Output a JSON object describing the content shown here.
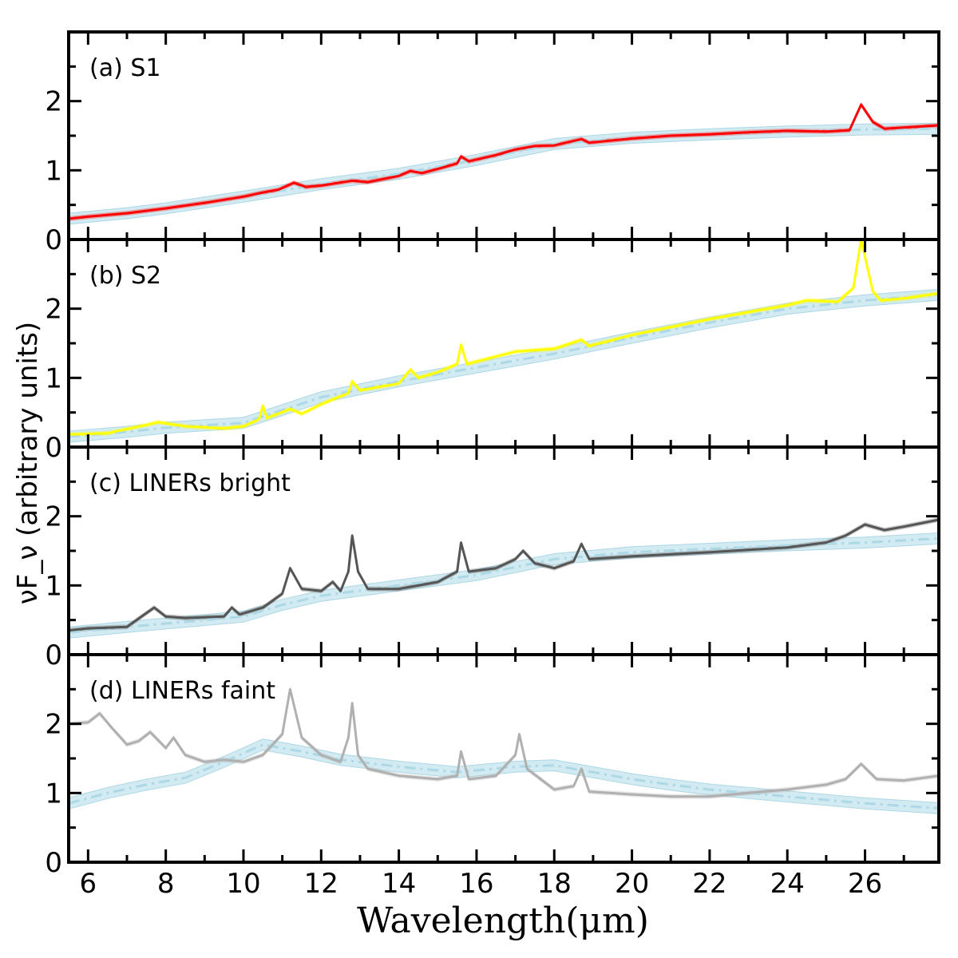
{
  "chart_data": {
    "type": "line",
    "xlabel": "Wavelength(μm)",
    "ylabel": "νF_ν (arbitrary units)",
    "xlim": [
      5.5,
      27.9
    ],
    "ylim": [
      0,
      3.0
    ],
    "x_ticks": [
      6,
      8,
      10,
      12,
      14,
      16,
      18,
      20,
      22,
      24,
      26
    ],
    "x_tick_labels": [
      "6",
      "8",
      "10",
      "12",
      "14",
      "16",
      "18",
      "20",
      "22",
      "24",
      "26"
    ],
    "y_ticks": [
      0,
      1,
      2
    ],
    "y_tick_labels": [
      "0",
      "1",
      "2"
    ],
    "band_halfwidth": 0.08,
    "band_color": "#add8e6",
    "panels": [
      {
        "label": "(a) S1",
        "color": "#ff0000",
        "spectrum": [
          [
            5.5,
            0.3
          ],
          [
            6,
            0.33
          ],
          [
            7,
            0.38
          ],
          [
            8,
            0.45
          ],
          [
            9,
            0.53
          ],
          [
            10,
            0.62
          ],
          [
            10.5,
            0.68
          ],
          [
            10.9,
            0.72
          ],
          [
            11.3,
            0.82
          ],
          [
            11.6,
            0.76
          ],
          [
            12,
            0.78
          ],
          [
            12.8,
            0.85
          ],
          [
            13.2,
            0.83
          ],
          [
            14,
            0.92
          ],
          [
            14.3,
            0.99
          ],
          [
            14.6,
            0.96
          ],
          [
            15,
            1.02
          ],
          [
            15.5,
            1.1
          ],
          [
            15.6,
            1.2
          ],
          [
            15.8,
            1.13
          ],
          [
            16.5,
            1.22
          ],
          [
            17.0,
            1.3
          ],
          [
            17.5,
            1.35
          ],
          [
            18.0,
            1.36
          ],
          [
            18.7,
            1.45
          ],
          [
            18.9,
            1.4
          ],
          [
            20,
            1.46
          ],
          [
            21,
            1.5
          ],
          [
            22,
            1.52
          ],
          [
            23,
            1.55
          ],
          [
            24,
            1.57
          ],
          [
            25,
            1.56
          ],
          [
            25.6,
            1.58
          ],
          [
            25.9,
            1.95
          ],
          [
            26.2,
            1.7
          ],
          [
            26.5,
            1.6
          ],
          [
            27.9,
            1.65
          ]
        ],
        "model": [
          [
            5.5,
            0.3
          ],
          [
            7,
            0.38
          ],
          [
            8,
            0.45
          ],
          [
            10,
            0.62
          ],
          [
            12,
            0.8
          ],
          [
            14,
            0.95
          ],
          [
            16,
            1.15
          ],
          [
            18,
            1.38
          ],
          [
            20,
            1.47
          ],
          [
            22,
            1.52
          ],
          [
            24,
            1.56
          ],
          [
            26,
            1.59
          ],
          [
            27.9,
            1.6
          ]
        ]
      },
      {
        "label": "(b) S2",
        "color": "#ffff00",
        "spectrum": [
          [
            5.5,
            0.18
          ],
          [
            6.5,
            0.2
          ],
          [
            7.5,
            0.32
          ],
          [
            7.8,
            0.36
          ],
          [
            8.5,
            0.3
          ],
          [
            9.5,
            0.27
          ],
          [
            10.0,
            0.3
          ],
          [
            10.4,
            0.4
          ],
          [
            10.5,
            0.6
          ],
          [
            10.6,
            0.42
          ],
          [
            11.2,
            0.55
          ],
          [
            11.5,
            0.48
          ],
          [
            12,
            0.62
          ],
          [
            12.7,
            0.78
          ],
          [
            12.8,
            0.95
          ],
          [
            13.0,
            0.82
          ],
          [
            14,
            0.92
          ],
          [
            14.3,
            1.12
          ],
          [
            14.5,
            1.0
          ],
          [
            15,
            1.08
          ],
          [
            15.5,
            1.2
          ],
          [
            15.6,
            1.48
          ],
          [
            15.75,
            1.2
          ],
          [
            17,
            1.38
          ],
          [
            18,
            1.42
          ],
          [
            18.7,
            1.55
          ],
          [
            18.9,
            1.46
          ],
          [
            20,
            1.62
          ],
          [
            22,
            1.85
          ],
          [
            24,
            2.05
          ],
          [
            24.5,
            2.12
          ],
          [
            25.3,
            2.1
          ],
          [
            25.7,
            2.3
          ],
          [
            25.9,
            3.0
          ],
          [
            26.2,
            2.25
          ],
          [
            26.4,
            2.12
          ],
          [
            27,
            2.15
          ],
          [
            27.9,
            2.22
          ]
        ],
        "model": [
          [
            5.5,
            0.15
          ],
          [
            7,
            0.22
          ],
          [
            8,
            0.28
          ],
          [
            10,
            0.35
          ],
          [
            12,
            0.72
          ],
          [
            14,
            0.95
          ],
          [
            16,
            1.15
          ],
          [
            18,
            1.35
          ],
          [
            20,
            1.58
          ],
          [
            22,
            1.8
          ],
          [
            24,
            2.0
          ],
          [
            26,
            2.12
          ],
          [
            27.9,
            2.2
          ]
        ]
      },
      {
        "label": "(c) LINERs bright",
        "color": "#555555",
        "spectrum": [
          [
            5.5,
            0.35
          ],
          [
            6,
            0.38
          ],
          [
            7,
            0.4
          ],
          [
            7.3,
            0.52
          ],
          [
            7.7,
            0.68
          ],
          [
            8.0,
            0.55
          ],
          [
            8.5,
            0.53
          ],
          [
            9.5,
            0.55
          ],
          [
            9.7,
            0.68
          ],
          [
            9.9,
            0.58
          ],
          [
            10.5,
            0.68
          ],
          [
            11.0,
            0.88
          ],
          [
            11.2,
            1.25
          ],
          [
            11.5,
            0.95
          ],
          [
            12,
            0.92
          ],
          [
            12.3,
            1.05
          ],
          [
            12.5,
            0.92
          ],
          [
            12.7,
            1.2
          ],
          [
            12.8,
            1.72
          ],
          [
            12.95,
            1.2
          ],
          [
            13.2,
            0.95
          ],
          [
            14,
            0.95
          ],
          [
            15,
            1.05
          ],
          [
            15.5,
            1.2
          ],
          [
            15.6,
            1.62
          ],
          [
            15.8,
            1.2
          ],
          [
            16.5,
            1.25
          ],
          [
            17.0,
            1.38
          ],
          [
            17.2,
            1.5
          ],
          [
            17.5,
            1.32
          ],
          [
            18.0,
            1.25
          ],
          [
            18.5,
            1.35
          ],
          [
            18.7,
            1.6
          ],
          [
            18.9,
            1.38
          ],
          [
            20,
            1.42
          ],
          [
            22,
            1.48
          ],
          [
            24,
            1.55
          ],
          [
            25,
            1.62
          ],
          [
            25.5,
            1.72
          ],
          [
            26,
            1.88
          ],
          [
            26.5,
            1.8
          ],
          [
            27,
            1.85
          ],
          [
            27.9,
            1.95
          ]
        ],
        "model": [
          [
            5.5,
            0.32
          ],
          [
            7,
            0.4
          ],
          [
            8,
            0.45
          ],
          [
            10,
            0.55
          ],
          [
            11,
            0.72
          ],
          [
            12,
            0.85
          ],
          [
            14,
            1.0
          ],
          [
            16,
            1.15
          ],
          [
            18,
            1.38
          ],
          [
            20,
            1.48
          ],
          [
            22,
            1.53
          ],
          [
            24,
            1.58
          ],
          [
            26,
            1.62
          ],
          [
            27.9,
            1.68
          ]
        ]
      },
      {
        "label": "(d) LINERs faint",
        "color": "#b0b0b0",
        "spectrum": [
          [
            5.5,
            2.0
          ],
          [
            6,
            2.02
          ],
          [
            6.3,
            2.15
          ],
          [
            6.6,
            1.95
          ],
          [
            7,
            1.7
          ],
          [
            7.3,
            1.75
          ],
          [
            7.6,
            1.88
          ],
          [
            8.0,
            1.65
          ],
          [
            8.2,
            1.8
          ],
          [
            8.5,
            1.55
          ],
          [
            9.0,
            1.45
          ],
          [
            9.5,
            1.48
          ],
          [
            10,
            1.45
          ],
          [
            10.5,
            1.55
          ],
          [
            11.0,
            1.85
          ],
          [
            11.2,
            2.5
          ],
          [
            11.5,
            1.8
          ],
          [
            12,
            1.55
          ],
          [
            12.5,
            1.45
          ],
          [
            12.7,
            1.8
          ],
          [
            12.8,
            2.3
          ],
          [
            12.95,
            1.55
          ],
          [
            13.2,
            1.35
          ],
          [
            14,
            1.25
          ],
          [
            15,
            1.2
          ],
          [
            15.5,
            1.25
          ],
          [
            15.6,
            1.6
          ],
          [
            15.8,
            1.2
          ],
          [
            16.5,
            1.25
          ],
          [
            17.0,
            1.55
          ],
          [
            17.1,
            1.85
          ],
          [
            17.3,
            1.35
          ],
          [
            18,
            1.05
          ],
          [
            18.5,
            1.1
          ],
          [
            18.7,
            1.35
          ],
          [
            18.9,
            1.02
          ],
          [
            20,
            0.98
          ],
          [
            21,
            0.95
          ],
          [
            22,
            0.95
          ],
          [
            23,
            1.0
          ],
          [
            24,
            1.05
          ],
          [
            25,
            1.12
          ],
          [
            25.5,
            1.2
          ],
          [
            25.9,
            1.42
          ],
          [
            26.3,
            1.2
          ],
          [
            27,
            1.18
          ],
          [
            27.9,
            1.25
          ]
        ],
        "model": [
          [
            5.5,
            0.85
          ],
          [
            6.5,
            1.0
          ],
          [
            7.5,
            1.12
          ],
          [
            8.5,
            1.22
          ],
          [
            9.5,
            1.45
          ],
          [
            10.5,
            1.7
          ],
          [
            11.5,
            1.6
          ],
          [
            12.5,
            1.48
          ],
          [
            14,
            1.38
          ],
          [
            15.5,
            1.3
          ],
          [
            17,
            1.38
          ],
          [
            18,
            1.4
          ],
          [
            19,
            1.3
          ],
          [
            20,
            1.2
          ],
          [
            21,
            1.12
          ],
          [
            22,
            1.05
          ],
          [
            23,
            1.0
          ],
          [
            24,
            0.95
          ],
          [
            25,
            0.9
          ],
          [
            26,
            0.85
          ],
          [
            27.9,
            0.78
          ]
        ]
      }
    ]
  }
}
